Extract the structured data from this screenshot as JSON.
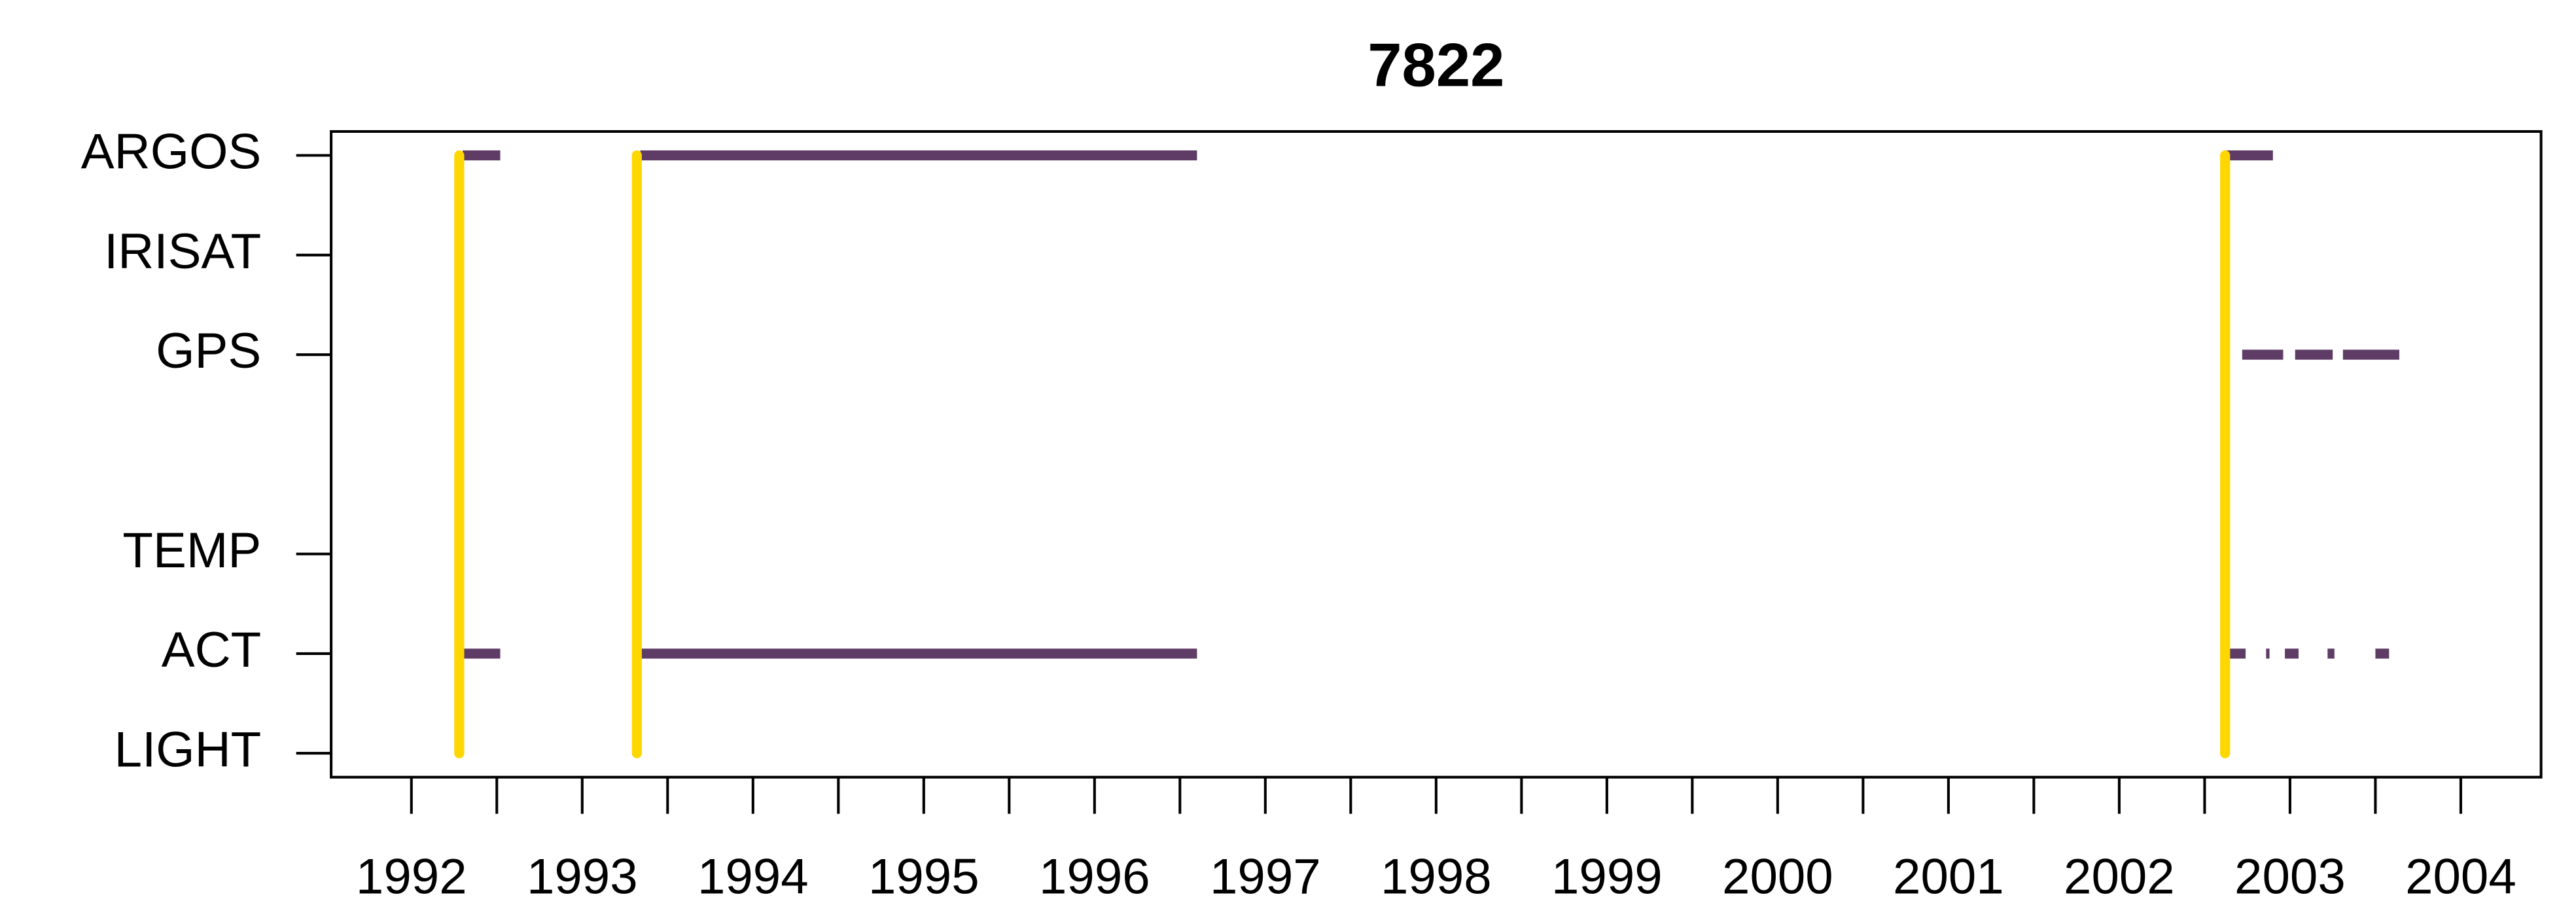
{
  "chart_data": {
    "type": "timeline",
    "title": "7822",
    "xlim": [
      1991.53,
      2004.47
    ],
    "xticks": [
      1992,
      1993,
      1994,
      1995,
      1996,
      1997,
      1998,
      1999,
      2000,
      2001,
      2002,
      2003,
      2004
    ],
    "xminor_ticks": [
      1992.5,
      1993.5,
      1994.5,
      1995.5,
      1996.5,
      1997.5,
      1998.5,
      1999.5,
      2000.5,
      2001.5,
      2002.5,
      2003.5
    ],
    "ylim": [
      0.76,
      7.24
    ],
    "yticks": [
      {
        "value": 1,
        "label": "LIGHT"
      },
      {
        "value": 2,
        "label": "ACT"
      },
      {
        "value": 3,
        "label": "TEMP"
      },
      {
        "value": 5,
        "label": "GPS"
      },
      {
        "value": 6,
        "label": "IRISAT"
      },
      {
        "value": 7,
        "label": "ARGOS"
      }
    ],
    "deployments": {
      "color": "#FFD700",
      "x": [
        1992.28,
        1993.32,
        2002.62
      ],
      "ylim": [
        1,
        7
      ]
    },
    "series": [
      {
        "name": "ARGOS",
        "y": 7,
        "color": "#5e3c66",
        "segments": [
          [
            1992.3,
            1992.52
          ],
          [
            1993.34,
            1996.6
          ],
          [
            2002.62,
            2002.9
          ]
        ]
      },
      {
        "name": "GPS",
        "y": 5,
        "color": "#5e3c66",
        "segments": [
          [
            2002.72,
            2002.96
          ],
          [
            2003.03,
            2003.25
          ],
          [
            2003.31,
            2003.64
          ]
        ]
      },
      {
        "name": "ACT",
        "y": 2,
        "color": "#5e3c66",
        "segments": [
          [
            1992.3,
            1992.52
          ],
          [
            1993.34,
            1996.6
          ],
          [
            2002.62,
            2002.74
          ],
          [
            2002.86,
            2002.88
          ],
          [
            2002.97,
            2003.05
          ],
          [
            2003.22,
            2003.26
          ],
          [
            2003.5,
            2003.58
          ]
        ]
      }
    ]
  }
}
